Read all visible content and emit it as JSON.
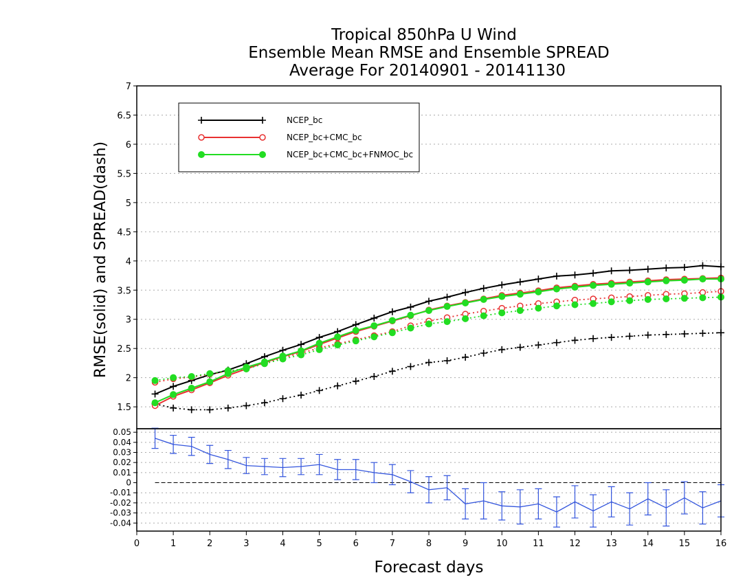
{
  "title_lines": [
    "Tropical 850hPa U Wind",
    "Ensemble Mean RMSE and Ensemble SPREAD",
    "Average For 20140901 - 20141130"
  ],
  "xlabel": "Forecast days",
  "ylabel": "RMSE(solid) and SPREAD(dash)",
  "chart_data": [
    {
      "type": "line",
      "xlim": [
        0,
        16
      ],
      "ylim": [
        1.125,
        7
      ],
      "x_ticks": [
        "0",
        "1",
        "2",
        "3",
        "4",
        "5",
        "6",
        "7",
        "8",
        "9",
        "10",
        "11",
        "12",
        "13",
        "14",
        "15",
        "16"
      ],
      "y_ticks": [
        "1.5",
        "2",
        "2.5",
        "3",
        "3.5",
        "4",
        "4.5",
        "5",
        "5.5",
        "6",
        "6.5",
        "7"
      ],
      "y_tick_values": [
        1.5,
        2,
        2.5,
        3,
        3.5,
        4,
        4.5,
        5,
        5.5,
        6,
        6.5,
        7
      ],
      "grid": true,
      "legend_position": "top-left",
      "x": [
        0.5,
        1,
        1.5,
        2,
        2.5,
        3,
        3.5,
        4,
        4.5,
        5,
        5.5,
        6,
        6.5,
        7,
        7.5,
        8,
        8.5,
        9,
        9.5,
        10,
        10.5,
        11,
        11.5,
        12,
        12.5,
        13,
        13.5,
        14,
        14.5,
        15,
        15.5,
        16
      ],
      "series": [
        {
          "name": "NCEP_bc",
          "color": "#000000",
          "marker": "plus",
          "rmse": [
            1.72,
            1.85,
            1.95,
            2.05,
            2.13,
            2.24,
            2.36,
            2.47,
            2.57,
            2.69,
            2.79,
            2.91,
            3.02,
            3.13,
            3.21,
            3.31,
            3.38,
            3.46,
            3.53,
            3.59,
            3.64,
            3.69,
            3.74,
            3.76,
            3.79,
            3.83,
            3.84,
            3.86,
            3.88,
            3.89,
            3.92,
            3.9
          ],
          "spread": [
            1.55,
            1.48,
            1.45,
            1.45,
            1.48,
            1.52,
            1.57,
            1.64,
            1.7,
            1.78,
            1.86,
            1.94,
            2.02,
            2.11,
            2.19,
            2.26,
            2.29,
            2.35,
            2.42,
            2.48,
            2.52,
            2.56,
            2.6,
            2.64,
            2.67,
            2.69,
            2.71,
            2.73,
            2.74,
            2.75,
            2.76,
            2.77
          ]
        },
        {
          "name": "NCEP_bc+CMC_bc",
          "color": "#e83030",
          "marker": "open-circle",
          "rmse": [
            1.52,
            1.68,
            1.79,
            1.91,
            2.04,
            2.15,
            2.26,
            2.36,
            2.45,
            2.57,
            2.68,
            2.79,
            2.88,
            2.97,
            3.06,
            3.16,
            3.23,
            3.29,
            3.35,
            3.41,
            3.45,
            3.49,
            3.54,
            3.57,
            3.6,
            3.62,
            3.64,
            3.66,
            3.68,
            3.69,
            3.7,
            3.71
          ],
          "spread": [
            1.92,
            1.98,
            2.01,
            2.06,
            2.11,
            2.16,
            2.25,
            2.34,
            2.42,
            2.51,
            2.58,
            2.65,
            2.72,
            2.79,
            2.89,
            2.97,
            3.03,
            3.09,
            3.14,
            3.19,
            3.23,
            3.27,
            3.3,
            3.33,
            3.35,
            3.37,
            3.39,
            3.41,
            3.43,
            3.44,
            3.46,
            3.48
          ]
        },
        {
          "name": "NCEP_bc+CMC_bc+FNMOC_bc",
          "color": "#22dd22",
          "marker": "filled-circle",
          "rmse": [
            1.57,
            1.71,
            1.82,
            1.93,
            2.07,
            2.18,
            2.27,
            2.37,
            2.46,
            2.59,
            2.7,
            2.81,
            2.89,
            2.98,
            3.07,
            3.15,
            3.22,
            3.28,
            3.34,
            3.39,
            3.43,
            3.47,
            3.52,
            3.55,
            3.58,
            3.6,
            3.62,
            3.64,
            3.66,
            3.67,
            3.69,
            3.69
          ],
          "spread": [
            1.95,
            2.0,
            2.02,
            2.07,
            2.12,
            2.15,
            2.24,
            2.32,
            2.39,
            2.48,
            2.56,
            2.63,
            2.7,
            2.77,
            2.85,
            2.92,
            2.96,
            3.01,
            3.06,
            3.11,
            3.15,
            3.19,
            3.23,
            3.25,
            3.27,
            3.3,
            3.32,
            3.34,
            3.35,
            3.36,
            3.37,
            3.38
          ]
        }
      ]
    },
    {
      "type": "line",
      "xlim": [
        0,
        16
      ],
      "ylim": [
        -0.048,
        0.0535
      ],
      "y_ticks": [
        "0.05",
        "0.04",
        "0.03",
        "0.02",
        "0.01",
        "0",
        "-0.01",
        "-0.02",
        "-0.03",
        "-0.04"
      ],
      "y_tick_values": [
        0.05,
        0.04,
        0.03,
        0.02,
        0.01,
        0,
        -0.01,
        -0.02,
        -0.03,
        -0.04
      ],
      "grid": true,
      "color": "#3355dd",
      "x": [
        0.5,
        1,
        1.5,
        2,
        2.5,
        3,
        3.5,
        4,
        4.5,
        5,
        5.5,
        6,
        6.5,
        7,
        7.5,
        8,
        8.5,
        9,
        9.5,
        10,
        10.5,
        11,
        11.5,
        12,
        12.5,
        13,
        13.5,
        14,
        14.5,
        15,
        15.5,
        16
      ],
      "values": [
        0.044,
        0.038,
        0.036,
        0.028,
        0.023,
        0.017,
        0.016,
        0.015,
        0.016,
        0.018,
        0.013,
        0.013,
        0.01,
        0.008,
        0.001,
        -0.007,
        -0.005,
        -0.021,
        -0.018,
        -0.023,
        -0.024,
        -0.021,
        -0.029,
        -0.019,
        -0.028,
        -0.019,
        -0.026,
        -0.016,
        -0.025,
        -0.015,
        -0.025,
        -0.018
      ],
      "error": [
        0.01,
        0.009,
        0.009,
        0.009,
        0.009,
        0.008,
        0.008,
        0.009,
        0.008,
        0.01,
        0.01,
        0.01,
        0.01,
        0.01,
        0.011,
        0.013,
        0.012,
        0.015,
        0.018,
        0.014,
        0.017,
        0.015,
        0.015,
        0.016,
        0.016,
        0.015,
        0.016,
        0.016,
        0.018,
        0.016,
        0.016,
        0.016
      ]
    }
  ]
}
